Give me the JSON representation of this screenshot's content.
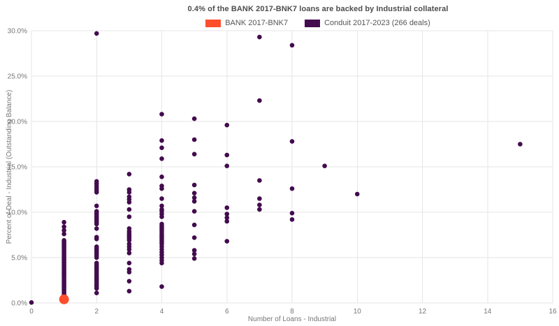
{
  "chart_data": {
    "type": "scatter",
    "title": "0.4% of the BANK 2017-BNK7 loans are backed by Industrial collateral",
    "xlabel": "Number of Loans - Industrial",
    "ylabel": "Percent of Deal - Industrial (Outstanding Balance)",
    "xlim": [
      0,
      16
    ],
    "ylim_pct": [
      0,
      30
    ],
    "grid": true,
    "legend_position": "top-center",
    "background_color": "#ffffff",
    "gridline_color": "#e6e6e6",
    "tick_label_color": "#767676",
    "title_color": "#4d4d4d",
    "x_ticks": {
      "values": [
        0,
        2,
        4,
        6,
        8,
        10,
        12,
        14,
        16
      ],
      "labels": [
        "0",
        "2",
        "4",
        "6",
        "8",
        "10",
        "12",
        "14",
        "16"
      ]
    },
    "y_ticks": {
      "values": [
        0,
        5,
        10,
        15,
        20,
        25,
        30
      ],
      "labels": [
        "0.0%",
        "5.0%",
        "10.0%",
        "15.0%",
        "20.0%",
        "25.0%",
        "30.0%"
      ]
    },
    "series": [
      {
        "name": "BANK 2017-BNK7",
        "color": "#ff4e2b",
        "marker_radius": 7,
        "points_by_x": [
          {
            "x": 1,
            "pcts": [
              0.4
            ]
          }
        ]
      },
      {
        "name": "Conduit 2017-2023 (266 deals)",
        "color": "#430c4e",
        "marker_radius": 3.3,
        "points_by_x": [
          {
            "x": 0,
            "pcts": [
              0.05
            ]
          },
          {
            "x": 1,
            "pcts": [
              8.9,
              8.4,
              8.0,
              7.6,
              6.9,
              6.75,
              6.6,
              6.45,
              6.3,
              6.15,
              6.0,
              5.85,
              5.7,
              5.55,
              5.4,
              5.25,
              5.1,
              4.95,
              4.8,
              4.65,
              4.5,
              4.35,
              4.2,
              4.05,
              3.9,
              3.75,
              3.6,
              3.45,
              3.3,
              3.15,
              3.0,
              2.85,
              2.7,
              2.55,
              2.4,
              2.25,
              2.1,
              1.95,
              1.8,
              1.65,
              1.5,
              1.35,
              1.2,
              1.05,
              0.9,
              0.75,
              0.6,
              0.5
            ]
          },
          {
            "x": 2,
            "pcts": [
              29.7,
              13.4,
              13.15,
              12.9,
              12.65,
              12.4,
              12.2,
              10.7,
              10.1,
              9.9,
              9.7,
              9.5,
              9.3,
              9.1,
              8.9,
              8.7,
              8.2,
              7.25,
              7.05,
              6.2,
              6.0,
              5.8,
              5.6,
              5.4,
              5.2,
              5.0,
              4.4,
              4.2,
              4.0,
              3.8,
              3.6,
              3.4,
              3.2,
              3.0,
              2.8,
              2.6,
              2.4,
              2.2,
              2.0,
              1.8,
              1.6,
              1.1
            ]
          },
          {
            "x": 3,
            "pcts": [
              14.2,
              12.5,
              12.2,
              11.7,
              11.4,
              11.1,
              10.3,
              9.5,
              8.2,
              7.9,
              7.7,
              7.5,
              7.3,
              7.1,
              6.9,
              6.5,
              6.2,
              5.9,
              5.5,
              4.4,
              3.7,
              3.4,
              2.4,
              1.3
            ]
          },
          {
            "x": 4,
            "pcts": [
              20.8,
              17.9,
              17.1,
              15.9,
              13.9,
              12.9,
              12.6,
              11.5,
              10.7,
              10.3,
              10.1,
              9.8,
              9.5,
              8.7,
              8.5,
              8.3,
              8.1,
              7.9,
              7.7,
              7.5,
              7.3,
              7.1,
              6.9,
              6.7,
              6.5,
              6.2,
              5.9,
              5.6,
              5.3,
              5.0,
              4.7,
              4.4,
              1.8
            ]
          },
          {
            "x": 5,
            "pcts": [
              20.3,
              18.0,
              16.4,
              13.0,
              12.1,
              11.6,
              11.2,
              10.1,
              8.6,
              7.2,
              5.8,
              5.4,
              4.9
            ]
          },
          {
            "x": 6,
            "pcts": [
              19.6,
              16.3,
              15.1,
              10.5,
              9.8,
              9.4,
              9.0,
              6.8
            ]
          },
          {
            "x": 7,
            "pcts": [
              29.3,
              22.3,
              13.5,
              11.5,
              10.8,
              10.3
            ]
          },
          {
            "x": 8,
            "pcts": [
              28.4,
              17.8,
              12.6,
              9.9,
              9.2
            ]
          },
          {
            "x": 9,
            "pcts": [
              15.1
            ]
          },
          {
            "x": 10,
            "pcts": [
              12.0
            ]
          },
          {
            "x": 15,
            "pcts": [
              17.5
            ]
          }
        ]
      }
    ]
  }
}
